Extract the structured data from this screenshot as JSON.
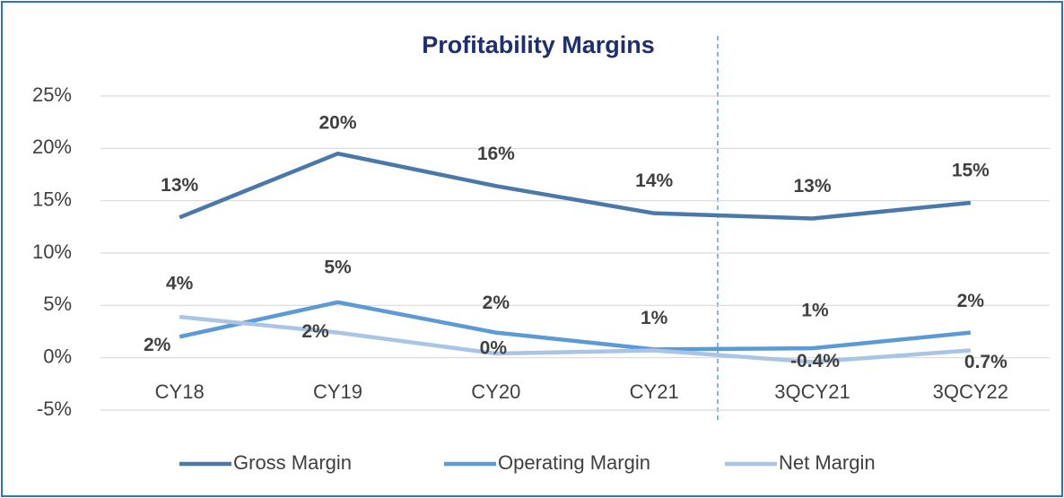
{
  "chart_data": {
    "type": "line",
    "title": "Profitability Margins",
    "categories": [
      "CY18",
      "CY19",
      "CY20",
      "CY21",
      "3QCY21",
      "3QCY22"
    ],
    "series": [
      {
        "name": "Gross Margin",
        "color": "#4a78a8",
        "values": [
          13.4,
          19.5,
          16.4,
          13.8,
          13.3,
          14.8
        ],
        "value_labels": [
          "13%",
          "20%",
          "16%",
          "14%",
          "13%",
          "15%"
        ]
      },
      {
        "name": "Operating Margin",
        "color": "#5b9bd5",
        "values": [
          2.0,
          5.3,
          2.4,
          0.8,
          0.9,
          2.4
        ],
        "value_labels": [
          "2%",
          "5%",
          "2%",
          "1%",
          "1%",
          "2%"
        ]
      },
      {
        "name": "Net Margin",
        "color": "#a9c4e4",
        "values": [
          3.9,
          2.4,
          0.4,
          0.7,
          -0.4,
          0.7
        ],
        "value_labels": [
          "4%",
          "2%",
          "0%",
          null,
          "-0.4%",
          "0.7%"
        ]
      }
    ],
    "ylim": [
      -5,
      25
    ],
    "yticks": [
      {
        "value": -5,
        "label": "-5%"
      },
      {
        "value": 0,
        "label": "0%"
      },
      {
        "value": 5,
        "label": "5%"
      },
      {
        "value": 10,
        "label": "10%"
      },
      {
        "value": 15,
        "label": "15%"
      },
      {
        "value": 20,
        "label": "20%"
      },
      {
        "value": 25,
        "label": "25%"
      }
    ],
    "grid": true,
    "legend": "bottom"
  }
}
